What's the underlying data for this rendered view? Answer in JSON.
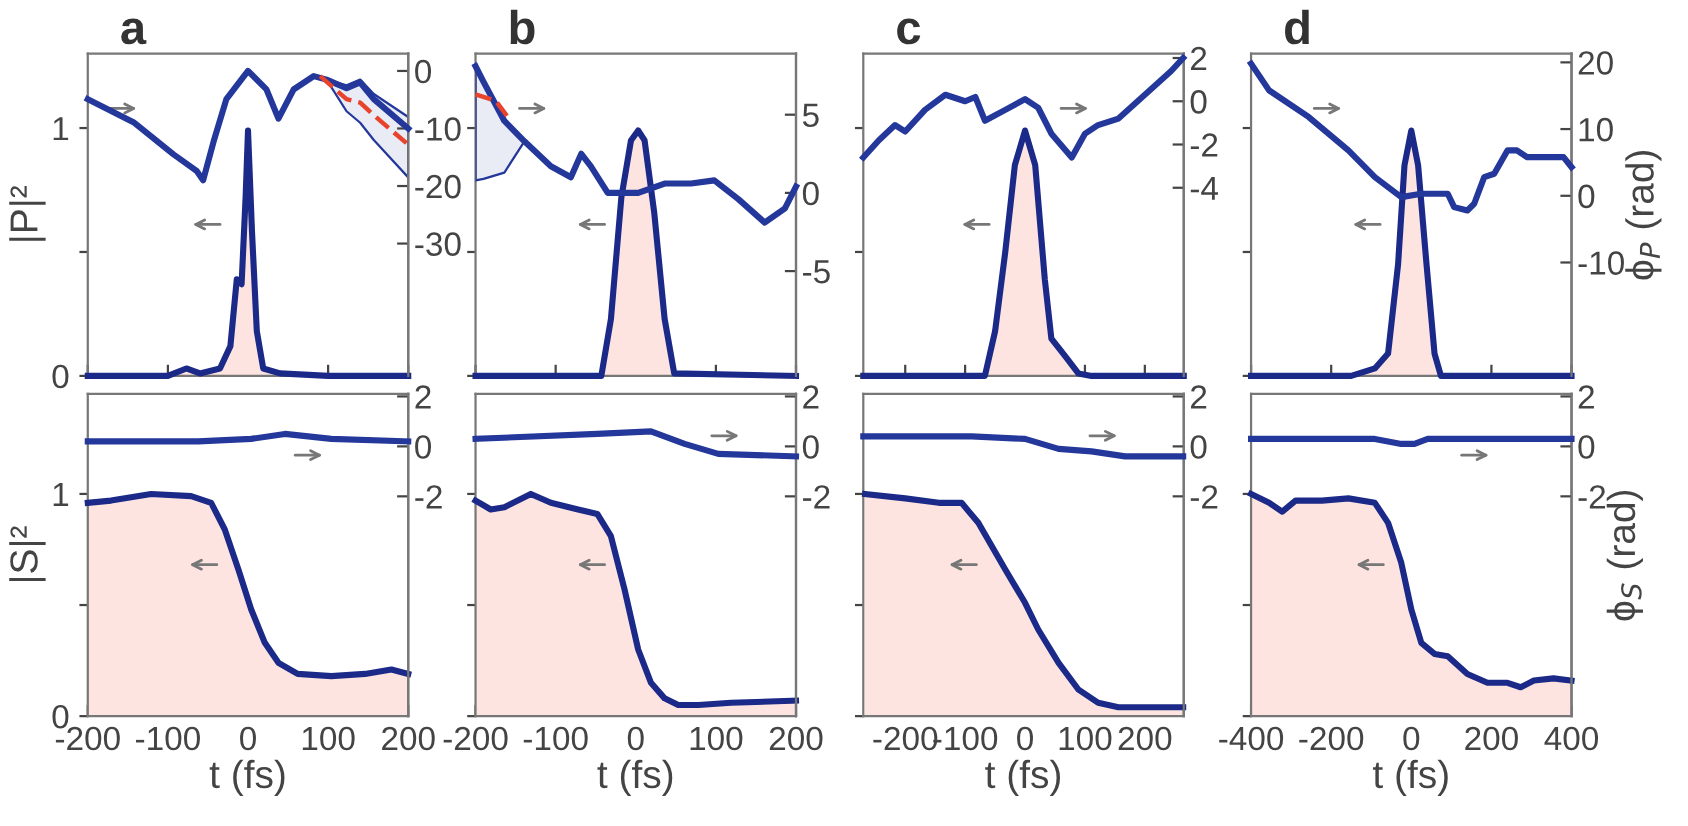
{
  "chart_data": [
    {
      "type": "line",
      "title": "a",
      "ylabel": "|P|²",
      "xlim": [
        -200,
        200
      ],
      "ylim": [
        0,
        1.3
      ],
      "yticks": [
        0,
        {
          "value": 0.5,
          "label": null
        },
        1
      ],
      "y2lim": [
        -53,
        3
      ],
      "y2ticks": [
        0,
        -10,
        -20,
        -30
      ],
      "tick_labels": [
        "y",
        "y2"
      ],
      "x": [
        -200,
        -100,
        -77,
        -60,
        -35,
        -22,
        -14,
        -8,
        -3,
        0,
        5,
        11,
        19,
        40,
        100,
        200
      ],
      "series": [
        {
          "type": "area",
          "color": "#1b2a88",
          "values": [
            0,
            0,
            0.03,
            0.01,
            0.03,
            0.12,
            0.39,
            0.37,
            0.72,
            0.99,
            0.58,
            0.18,
            0.03,
            0.01,
            0,
            0
          ]
        },
        {
          "axis": "y2",
          "color": "#24379a",
          "x": [
            -200,
            -143,
            -93,
            -64,
            -56,
            -43,
            -27,
            0,
            23,
            38,
            57,
            82,
            98,
            123,
            140,
            157,
            200
          ],
          "values": [
            -4.9,
            -8.9,
            -14.5,
            -17.4,
            -19,
            -12.3,
            -4.9,
            0,
            -3.2,
            -8.3,
            -3.2,
            -0.9,
            -1.5,
            -3,
            -2,
            -4.9,
            -10
          ],
          "lower": [
            null,
            null,
            null,
            null,
            null,
            null,
            null,
            null,
            null,
            null,
            null,
            null,
            -1.5,
            -7,
            -9,
            -12,
            -18.5
          ],
          "upper": [
            null,
            null,
            null,
            null,
            null,
            null,
            null,
            null,
            null,
            null,
            null,
            null,
            -1.5,
            -2.5,
            -1.5,
            -4,
            -8
          ]
        },
        {
          "axis": "y2",
          "color": "#e8432c",
          "line_style": "dashed",
          "x": [
            90,
            123,
            140,
            157,
            200
          ],
          "values": [
            -0.9,
            -4.9,
            -5.5,
            -7.7,
            -12.8
          ]
        }
      ]
    },
    {
      "type": "line",
      "title": "b",
      "xlim": [
        -200,
        200
      ],
      "ylim": [
        0,
        1.3
      ],
      "y2lim": [
        -11.7,
        8.9
      ],
      "y2ticks": [
        5,
        0,
        -5
      ],
      "tick_labels": [
        "y2"
      ],
      "x": [
        -200,
        -43,
        -31,
        -18,
        -6,
        3,
        11,
        23,
        36,
        48,
        200
      ],
      "series": [
        {
          "type": "area",
          "color": "#1b2a88",
          "values": [
            0,
            0,
            0.23,
            0.72,
            0.95,
            0.99,
            0.95,
            0.66,
            0.23,
            0.01,
            0
          ]
        },
        {
          "axis": "y2",
          "color": "#24379a",
          "x": [
            -200,
            -190,
            -164,
            -139,
            -106,
            -81,
            -68,
            -56,
            -35,
            3,
            36,
            69,
            98,
            128,
            161,
            186,
            200
          ],
          "values": [
            8.1,
            7.1,
            4.6,
            3.3,
            1.7,
            1.0,
            2.5,
            1.7,
            0,
            0,
            0.6,
            0.6,
            0.8,
            -0.4,
            -1.9,
            -1,
            0.4
          ],
          "lower": [
            0.8,
            0.9,
            1.3,
            3.3,
            null,
            null,
            null,
            null,
            null,
            null,
            null,
            null,
            null,
            null,
            null,
            null,
            null
          ],
          "upper": [
            8.1,
            7.1,
            4.6,
            3.3,
            null,
            null,
            null,
            null,
            null,
            null,
            null,
            null,
            null,
            null,
            null,
            null,
            null
          ]
        },
        {
          "axis": "y2",
          "color": "#e8432c",
          "line_style": "dashed",
          "x": [
            -200,
            -175,
            -156
          ],
          "values": [
            6.3,
            5.9,
            4.6
          ]
        }
      ]
    },
    {
      "type": "line",
      "title": "c",
      "xlim": [
        -270,
        265
      ],
      "ylim": [
        0,
        1.3
      ],
      "y2lim": [
        -12.7,
        2.2
      ],
      "y2ticks": [
        2,
        0,
        -2,
        -4
      ],
      "tick_labels": [
        "y2"
      ],
      "x": [
        -270,
        -67,
        -50,
        -33,
        -17,
        0,
        17,
        33,
        44,
        67,
        89,
        111,
        265
      ],
      "series": [
        {
          "type": "area",
          "color": "#1b2a88",
          "values": [
            0,
            0,
            0.18,
            0.5,
            0.85,
            0.99,
            0.85,
            0.39,
            0.15,
            0.08,
            0.01,
            0,
            0
          ]
        },
        {
          "axis": "y2",
          "color": "#24379a",
          "x": [
            -270,
            -244,
            -217,
            -200,
            -167,
            -133,
            -100,
            -83,
            -67,
            -33,
            0,
            22,
            44,
            78,
            100,
            122,
            156,
            200,
            244,
            264
          ],
          "values": [
            -2.6,
            -1.8,
            -1.1,
            -1.4,
            -0.4,
            0.3,
            0,
            0.2,
            -0.9,
            -0.4,
            0.1,
            -0.3,
            -1.5,
            -2.6,
            -1.5,
            -1.1,
            -0.8,
            0.3,
            1.4,
            2
          ]
        }
      ]
    },
    {
      "type": "line",
      "title": "d",
      "y2label": "ϕ$_{P}$ (rad)",
      "xlim": [
        -400,
        400
      ],
      "ylim": [
        0,
        1.3
      ],
      "y2lim": [
        -27,
        21.3
      ],
      "y2ticks": [
        20,
        10,
        0,
        -10
      ],
      "tick_labels": [
        "y2"
      ],
      "x": [
        -400,
        -150,
        -91,
        -58,
        -33,
        -17,
        0,
        17,
        38,
        58,
        74,
        400
      ],
      "series": [
        {
          "type": "area",
          "color": "#1b2a88",
          "values": [
            0,
            0,
            0.03,
            0.09,
            0.45,
            0.85,
            0.99,
            0.85,
            0.45,
            0.09,
            0,
            0
          ]
        },
        {
          "axis": "y2",
          "color": "#24379a",
          "x": [
            -400,
            -355,
            -256,
            -157,
            -91,
            -25,
            25,
            91,
            107,
            140,
            157,
            182,
            207,
            240,
            264,
            289,
            339,
            380,
            400
          ],
          "values": [
            19.8,
            15.8,
            11.8,
            6.8,
            2.8,
            -0.2,
            0.3,
            0.3,
            -1.7,
            -2.2,
            -1.2,
            2.8,
            3.3,
            6.8,
            6.8,
            5.8,
            5.8,
            5.8,
            4.3
          ]
        }
      ]
    },
    {
      "type": "line",
      "ylabel": "|S|²",
      "xlabel": "t (fs)",
      "xlim": [
        -200,
        200
      ],
      "xticks": [
        -200,
        -100,
        0,
        100,
        200
      ],
      "ylim": [
        0,
        1.45
      ],
      "yticks": [
        0,
        {
          "value": 0.5,
          "label": null
        },
        1
      ],
      "y2lim": [
        -10.8,
        2.1
      ],
      "y2ticks": [
        2,
        0,
        -2
      ],
      "x": [
        -200,
        -171,
        -121,
        -71,
        -46,
        -29,
        -12,
        4,
        21,
        38,
        62,
        104,
        146,
        179,
        200
      ],
      "series": [
        {
          "type": "area",
          "color": "#1b2a88",
          "values": [
            0.96,
            0.97,
            1.0,
            0.99,
            0.96,
            0.84,
            0.66,
            0.48,
            0.33,
            0.24,
            0.19,
            0.18,
            0.19,
            0.21,
            0.19
          ]
        },
        {
          "axis": "y2",
          "color": "#24379a",
          "x": [
            -200,
            -62,
            4,
            46,
            104,
            200
          ],
          "values": [
            0.2,
            0.2,
            0.3,
            0.5,
            0.3,
            0.2
          ]
        }
      ]
    },
    {
      "type": "line",
      "xlabel": "t (fs)",
      "xlim": [
        -200,
        200
      ],
      "xticks": [
        -200,
        -100,
        0,
        100,
        200
      ],
      "ylim": [
        0,
        1.45
      ],
      "y2lim": [
        -10.8,
        2.1
      ],
      "y2ticks": [
        2,
        0,
        -2
      ],
      "tick_labels": [
        "x",
        "y2"
      ],
      "x": [
        -200,
        -181,
        -164,
        -131,
        -106,
        -72,
        -48,
        -31,
        -14,
        3,
        19,
        36,
        53,
        78,
        119,
        200
      ],
      "series": [
        {
          "type": "area",
          "color": "#1b2a88",
          "values": [
            0.97,
            0.93,
            0.94,
            1.0,
            0.96,
            0.93,
            0.91,
            0.81,
            0.57,
            0.3,
            0.15,
            0.08,
            0.05,
            0.05,
            0.06,
            0.07
          ]
        },
        {
          "axis": "y2",
          "color": "#24379a",
          "x": [
            -200,
            -48,
            19,
            61,
            103,
            200
          ],
          "values": [
            0.3,
            0.5,
            0.6,
            0.1,
            -0.3,
            -0.4
          ]
        }
      ]
    },
    {
      "type": "line",
      "xlabel": "t (fs)",
      "xlim": [
        -270,
        265
      ],
      "xticks": [
        -200,
        -100,
        0,
        100,
        200
      ],
      "ylim": [
        0,
        1.45
      ],
      "y2lim": [
        -10.8,
        2.1
      ],
      "y2ticks": [
        2,
        0,
        -2
      ],
      "tick_labels": [
        "x",
        "y2"
      ],
      "x": [
        -267,
        -200,
        -144,
        -106,
        -78,
        -33,
        0,
        22,
        56,
        89,
        122,
        156,
        264
      ],
      "series": [
        {
          "type": "area",
          "color": "#1b2a88",
          "values": [
            1.0,
            0.98,
            0.96,
            0.96,
            0.87,
            0.66,
            0.51,
            0.39,
            0.24,
            0.12,
            0.06,
            0.04,
            0.04
          ]
        },
        {
          "axis": "y2",
          "color": "#24379a",
          "x": [
            -270,
            -89,
            0,
            56,
            111,
            167,
            264
          ],
          "values": [
            0.4,
            0.4,
            0.3,
            -0.1,
            -0.2,
            -0.4,
            -0.4
          ]
        }
      ]
    },
    {
      "type": "line",
      "xlabel": "t (fs)",
      "y2label": "ϕ$_{S}$ (rad)",
      "xlim": [
        -400,
        400
      ],
      "xticks": [
        -400,
        -200,
        0,
        200,
        400
      ],
      "ylim": [
        0,
        1.45
      ],
      "y2lim": [
        -10.8,
        2.1
      ],
      "y2ticks": [
        2,
        0,
        -2
      ],
      "tick_labels": [
        "x",
        "y2"
      ],
      "x": [
        -400,
        -355,
        -322,
        -289,
        -223,
        -157,
        -91,
        -58,
        -25,
        0,
        25,
        58,
        91,
        140,
        190,
        240,
        273,
        306,
        355,
        400
      ],
      "series": [
        {
          "type": "area",
          "color": "#1b2a88",
          "values": [
            1.0,
            0.96,
            0.92,
            0.97,
            0.97,
            0.98,
            0.96,
            0.87,
            0.69,
            0.48,
            0.33,
            0.28,
            0.27,
            0.19,
            0.15,
            0.15,
            0.13,
            0.16,
            0.17,
            0.16
          ]
        },
        {
          "axis": "y2",
          "color": "#24379a",
          "x": [
            -400,
            -91,
            -25,
            8,
            41,
            400
          ],
          "values": [
            0.3,
            0.3,
            0.1,
            0.1,
            0.3,
            0.3
          ]
        }
      ]
    }
  ]
}
